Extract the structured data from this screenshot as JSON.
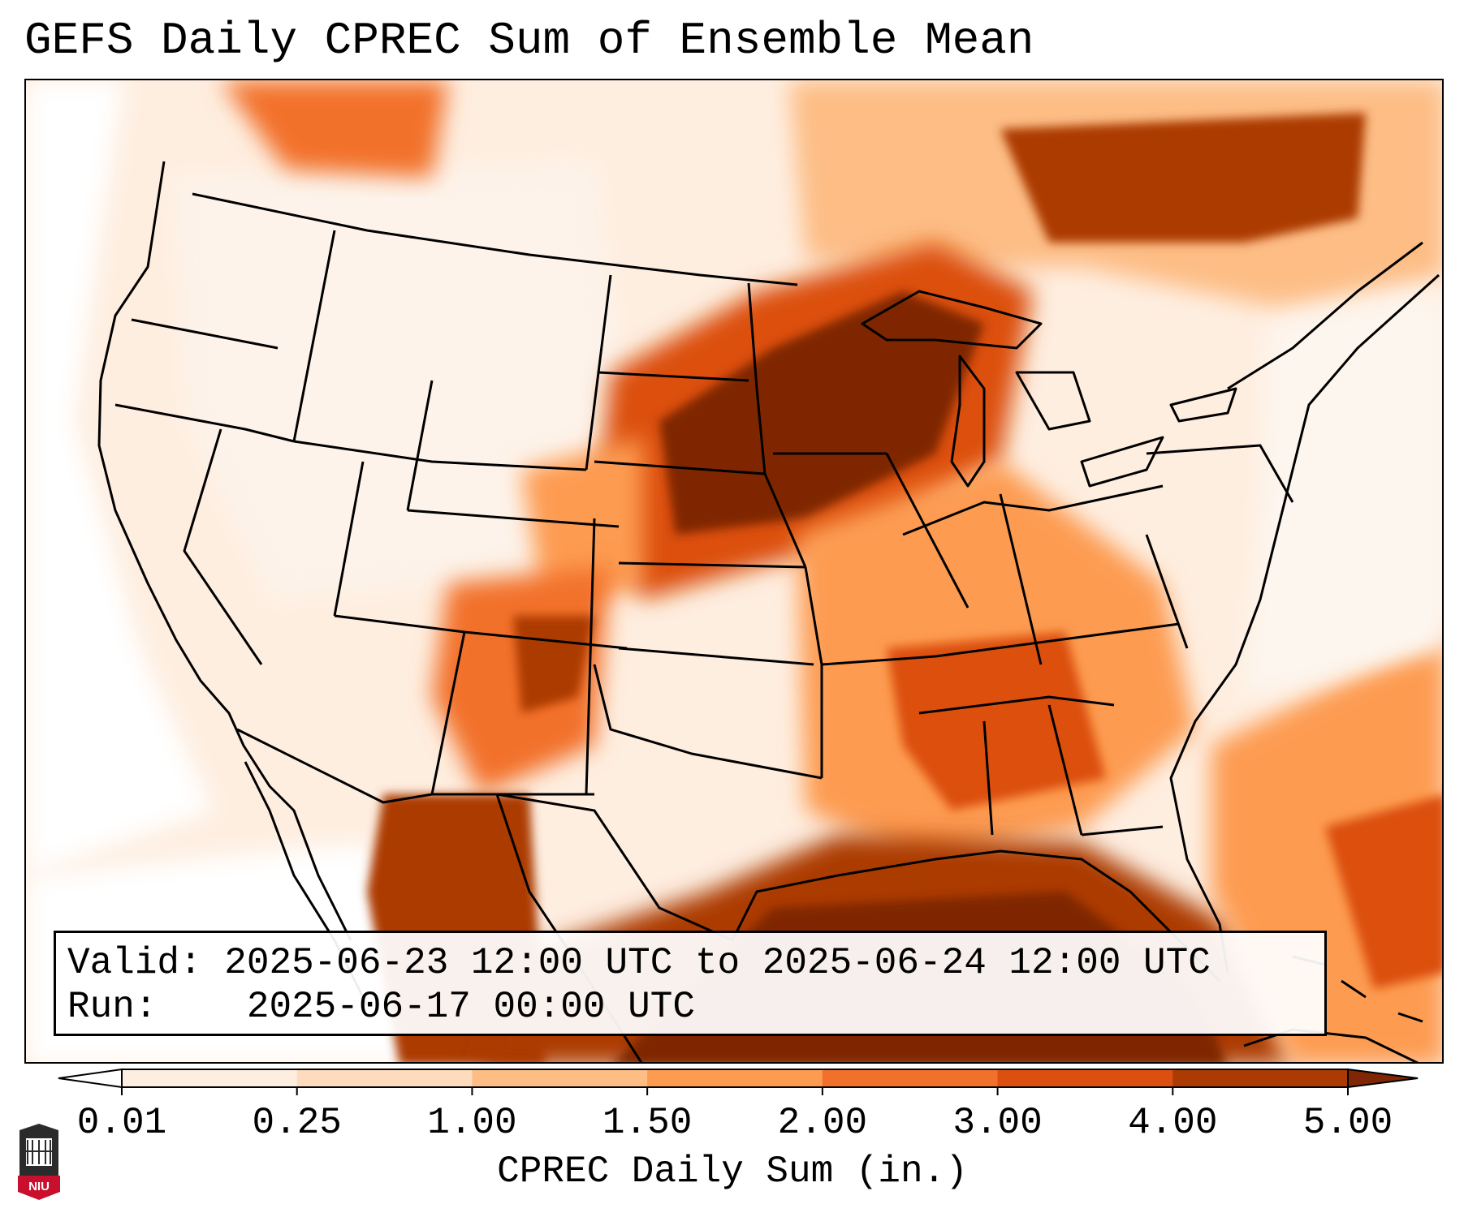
{
  "title": "GEFS Daily CPREC Sum of Ensemble Mean",
  "map": {
    "projection": "Lambert conformal, CONUS",
    "variable": "CPREC",
    "features": [
      "state-boundaries",
      "national-borders",
      "coastlines",
      "great-lakes"
    ],
    "heavy_precip_areas": [
      "upper-midwest",
      "great-lakes",
      "gulf-of-mexico",
      "southeast",
      "southern-rockies",
      "northern-mexico",
      "ontario-quebec"
    ]
  },
  "info": {
    "valid_label": "Valid:",
    "valid_value": "2025-06-23 12:00 UTC to 2025-06-24 12:00 UTC",
    "run_label": "Run:",
    "run_value": "2025-06-17 00:00 UTC"
  },
  "colorbar": {
    "label": "CPREC Daily Sum (in.)",
    "ticks": [
      "0.01",
      "0.25",
      "1.00",
      "1.50",
      "2.00",
      "3.00",
      "4.00",
      "5.00"
    ],
    "colors": [
      "#feeee0",
      "#fddbbc",
      "#fdbd85",
      "#fd9b51",
      "#f2712a",
      "#dc500f",
      "#ac3b03",
      "#7f2704"
    ],
    "extend": "both"
  },
  "logo": {
    "text": "NIU",
    "color": "#c8102e"
  }
}
